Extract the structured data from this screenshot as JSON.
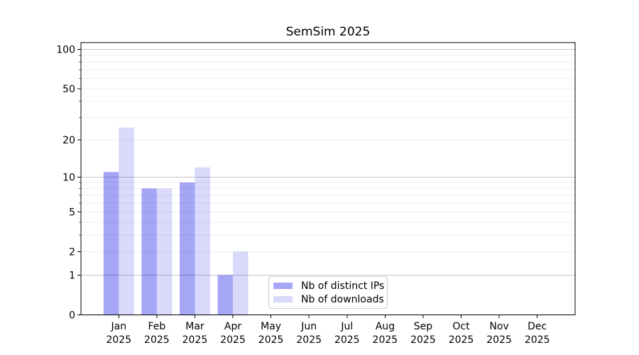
{
  "title": "SemSim 2025",
  "chart_data": {
    "type": "bar",
    "title": "SemSim 2025",
    "categories": [
      "Jan",
      "Feb",
      "Mar",
      "Apr",
      "May",
      "Jun",
      "Jul",
      "Aug",
      "Sep",
      "Oct",
      "Nov",
      "Dec"
    ],
    "category_year": "2025",
    "series": [
      {
        "name": "Nb of distinct IPs",
        "color": "rgba(0,0,230,0.35)",
        "values": [
          11,
          8,
          9,
          1,
          0,
          0,
          0,
          0,
          0,
          0,
          0,
          0
        ]
      },
      {
        "name": "Nb of downloads",
        "color": "rgba(0,0,230,0.15)",
        "values": [
          25,
          8,
          12,
          2,
          0,
          0,
          0,
          0,
          0,
          0,
          0,
          0
        ]
      }
    ],
    "yscale": "log1p",
    "yticks": [
      0,
      1,
      2,
      5,
      10,
      20,
      50,
      100
    ],
    "yticks_minor": [
      3,
      4,
      6,
      7,
      8,
      9,
      30,
      40,
      60,
      70,
      80,
      90
    ],
    "ylim": [
      0,
      112
    ],
    "grid": "both",
    "legend": {
      "labels": [
        "Nb of distinct IPs",
        "Nb of downloads"
      ],
      "position": "lower center-right"
    }
  },
  "colors": {
    "bar_distinct_ips": "rgba(0,0,230,0.35)",
    "bar_downloads": "rgba(0,0,230,0.15)",
    "grid_major": "#c6c6c6",
    "grid_minor": "#efefef",
    "axis": "#000000",
    "text": "#000000",
    "legend_border": "#cccccc",
    "background": "#ffffff"
  }
}
